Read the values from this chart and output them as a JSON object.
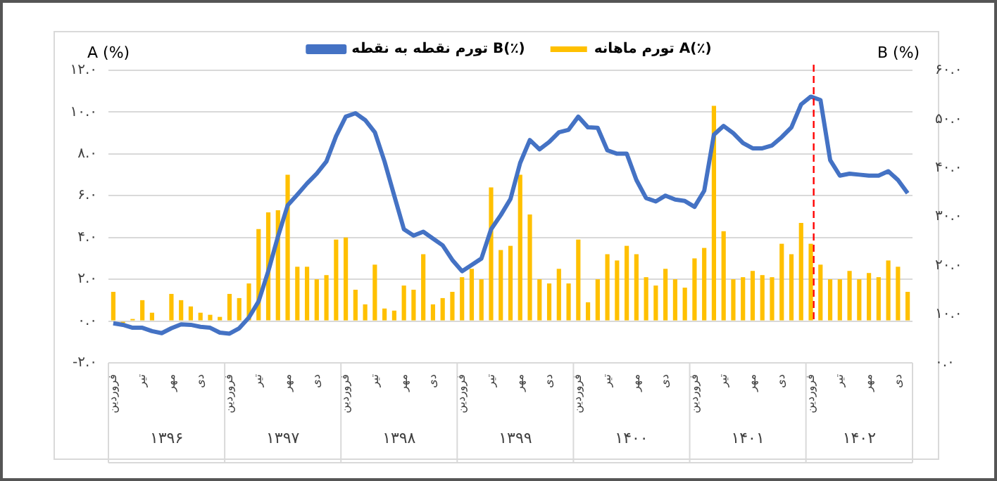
{
  "chart_data": {
    "type": "bar",
    "ylabel": "A (%)",
    "y2label": "B (%)",
    "categories": [
      "فروردین",
      null,
      null,
      "تیر",
      null,
      null,
      "مهر",
      null,
      null,
      "دی",
      null,
      null,
      "فروردین",
      null,
      null,
      "تیر",
      null,
      null,
      "مهر",
      null,
      null,
      "دی",
      null,
      null,
      "فروردین",
      null,
      null,
      "تیر",
      null,
      null,
      "مهر",
      null,
      null,
      "دی",
      null,
      null,
      "فروردین",
      null,
      null,
      "تیر",
      null,
      null,
      "مهر",
      null,
      null,
      "دی",
      null,
      null,
      "فروردین",
      null,
      null,
      "تیر",
      null,
      null,
      "مهر",
      null,
      null,
      "دی",
      null,
      null,
      "فروردین",
      null,
      null,
      "تیر",
      null,
      null,
      "مهر",
      null,
      null,
      "دی",
      null,
      null,
      "فروردین",
      null,
      null,
      "تیر",
      null,
      null,
      "مهر",
      null,
      null,
      "دی",
      null
    ],
    "series": [
      {
        "name": "تورم ماهانه A(٪)",
        "color": "#ffc000",
        "values": [
          1.4,
          -0.1,
          0.1,
          1.0,
          0.4,
          0.0,
          1.3,
          1.0,
          0.7,
          0.4,
          0.3,
          0.2,
          1.3,
          1.1,
          1.8,
          4.4,
          5.2,
          5.3,
          7.0,
          2.6,
          2.6,
          2.0,
          2.2,
          3.9,
          4.0,
          1.5,
          0.8,
          2.7,
          0.6,
          0.5,
          1.7,
          1.5,
          3.2,
          0.8,
          1.1,
          1.4,
          2.1,
          2.5,
          2.0,
          6.4,
          3.4,
          3.6,
          7.0,
          5.1,
          2.0,
          1.8,
          2.5,
          1.8,
          3.9,
          0.9,
          2.0,
          3.2,
          2.9,
          3.6,
          3.2,
          2.1,
          1.7,
          2.5,
          2.0,
          1.6,
          3.0,
          3.5,
          10.3,
          4.3,
          2.0,
          2.1,
          2.4,
          2.2,
          2.1,
          3.7,
          3.2,
          4.7,
          3.7,
          2.7,
          2.0,
          2.0,
          2.4,
          2.0,
          2.3,
          2.1,
          2.9,
          2.6,
          1.4
        ]
      },
      {
        "name": "تورم نقطه به نقطه B(٪)",
        "type": "line",
        "axis": "y2",
        "color": "#4472c4",
        "values": [
          8.1,
          7.8,
          7.2,
          7.2,
          6.5,
          6.1,
          7.1,
          7.9,
          7.8,
          7.4,
          7.2,
          6.2,
          6.0,
          7.1,
          9.3,
          12.6,
          18.8,
          25.9,
          32.3,
          34.5,
          36.8,
          38.8,
          41.3,
          46.5,
          50.5,
          51.2,
          49.8,
          47.3,
          41.3,
          34.3,
          27.4,
          26.1,
          26.9,
          25.5,
          24.1,
          21.1,
          18.8,
          20.1,
          21.4,
          27.4,
          30.3,
          33.6,
          41.0,
          45.7,
          43.8,
          45.3,
          47.3,
          47.8,
          50.5,
          48.3,
          48.2,
          43.6,
          42.9,
          42.9,
          37.5,
          33.8,
          33.1,
          34.3,
          33.5,
          33.2,
          32.0,
          35.3,
          46.8,
          48.6,
          47.1,
          45.1,
          44.0,
          44.0,
          44.6,
          46.3,
          48.3,
          53.0,
          54.6,
          53.9,
          41.6,
          38.4,
          38.8,
          38.6,
          38.4,
          38.4,
          39.3,
          37.5,
          34.8
        ]
      }
    ],
    "ylim": [
      -2,
      12
    ],
    "yticks": [
      {
        "value": -2,
        "label": "-۲.۰"
      },
      {
        "value": 0,
        "label": "۰.۰"
      },
      {
        "value": 2,
        "label": "۲.۰"
      },
      {
        "value": 4,
        "label": "۴.۰"
      },
      {
        "value": 6,
        "label": "۶.۰"
      },
      {
        "value": 8,
        "label": "۸.۰"
      },
      {
        "value": 10,
        "label": "۱۰.۰"
      },
      {
        "value": 12,
        "label": "۱۲.۰"
      }
    ],
    "y2lim": [
      0,
      60
    ],
    "y2ticks": [
      {
        "value": 0,
        "label": "۰.۰"
      },
      {
        "value": 10,
        "label": "۱۰.۰"
      },
      {
        "value": 20,
        "label": "۲۰.۰"
      },
      {
        "value": 30,
        "label": "۳۰.۰"
      },
      {
        "value": 40,
        "label": "۴۰.۰"
      },
      {
        "value": 50,
        "label": "۵۰.۰"
      },
      {
        "value": 60,
        "label": "۶۰.۰"
      }
    ],
    "annotations": [
      "۱۳۹۶",
      "۱۳۹۷",
      "۱۳۹۸",
      "۱۳۹۹",
      "۱۴۰۰",
      "۱۴۰۱",
      "۱۴۰۲"
    ],
    "grid": "y",
    "legend": "top",
    "marker": "none",
    "line_style": "solid"
  }
}
